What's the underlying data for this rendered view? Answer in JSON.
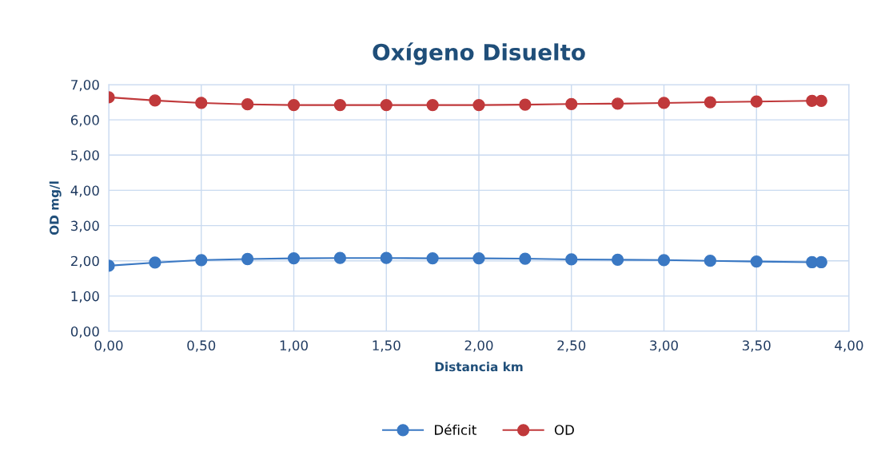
{
  "chart_data": {
    "type": "line",
    "title": "Oxígeno Disuelto",
    "xlabel": "Distancia km",
    "ylabel": "OD mg/l",
    "x": [
      0,
      0.25,
      0.5,
      0.75,
      1.0,
      1.25,
      1.5,
      1.75,
      2.0,
      2.25,
      2.5,
      2.75,
      3.0,
      3.25,
      3.5,
      3.8,
      3.85
    ],
    "series": [
      {
        "name": "Déficit",
        "color": "#3a78c3",
        "values": [
          1.86,
          1.95,
          2.02,
          2.05,
          2.07,
          2.08,
          2.08,
          2.07,
          2.07,
          2.06,
          2.04,
          2.03,
          2.02,
          2.0,
          1.98,
          1.96,
          1.96
        ]
      },
      {
        "name": "OD",
        "color": "#c0393b",
        "values": [
          6.64,
          6.55,
          6.48,
          6.44,
          6.42,
          6.42,
          6.42,
          6.42,
          6.42,
          6.43,
          6.45,
          6.46,
          6.48,
          6.5,
          6.52,
          6.54,
          6.54
        ]
      }
    ],
    "xlim": [
      0,
      4
    ],
    "xticks": [
      {
        "value": 0,
        "label": "0,00"
      },
      {
        "value": 0.5,
        "label": "0,50"
      },
      {
        "value": 1,
        "label": "1,00"
      },
      {
        "value": 1.5,
        "label": "1,50"
      },
      {
        "value": 2,
        "label": "2,00"
      },
      {
        "value": 2.5,
        "label": "2,50"
      },
      {
        "value": 3,
        "label": "3,00"
      },
      {
        "value": 3.5,
        "label": "3,50"
      },
      {
        "value": 4,
        "label": "4,00"
      }
    ],
    "ylim": [
      0,
      7
    ],
    "yticks": [
      {
        "value": 0,
        "label": "0,00"
      },
      {
        "value": 1,
        "label": "1,00"
      },
      {
        "value": 2,
        "label": "2,00"
      },
      {
        "value": 3,
        "label": "3,00"
      },
      {
        "value": 4,
        "label": "4,00"
      },
      {
        "value": 5,
        "label": "5,00"
      },
      {
        "value": 6,
        "label": "6,00"
      },
      {
        "value": 7,
        "label": "7,00"
      }
    ],
    "grid": true,
    "legend": "bottom",
    "marker": "circle",
    "line_style": "solid"
  }
}
